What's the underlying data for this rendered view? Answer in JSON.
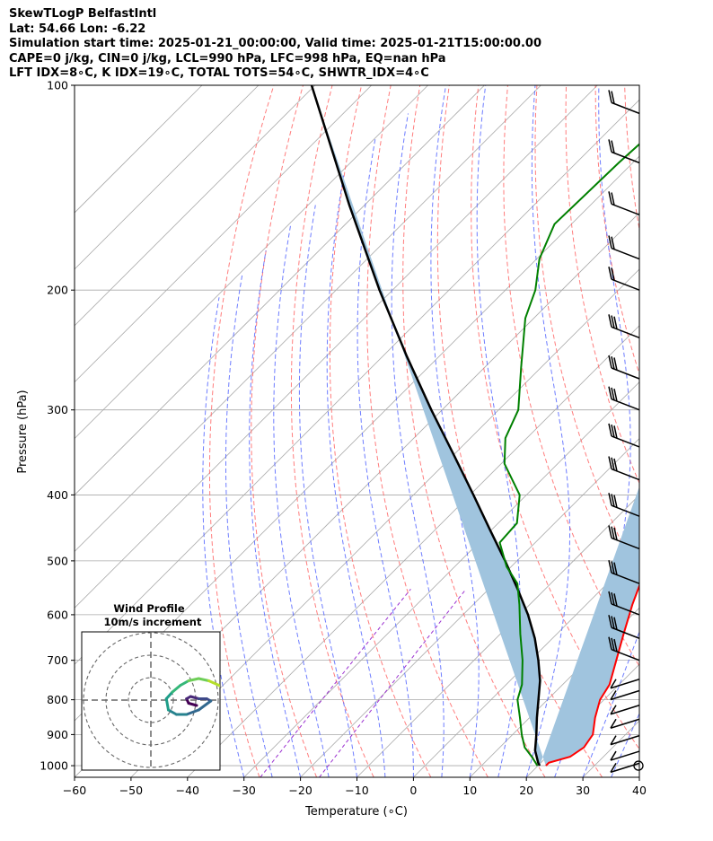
{
  "title_lines": [
    "SkewTLogP BelfastIntl",
    "Lat: 54.66   Lon: -6.22",
    "Simulation start time: 2025-01-21_00:00:00, Valid time: 2025-01-21T15:00:00.00",
    "CAPE=0 j/kg, CIN=0 j/kg, LCL=990 hPa, LFC=998 hPa, EQ=nan hPa",
    "LFT IDX=8∘C, K IDX=19∘C, TOTAL TOTS=54∘C, SHWTR_IDX=4∘C"
  ],
  "chart_data": {
    "type": "line",
    "subtype": "skew-t log-p",
    "xlabel": "Temperature (∘C)",
    "ylabel": "Pressure (hPa)",
    "xlim": [
      -60,
      40
    ],
    "ylim": [
      1040,
      100
    ],
    "x_ticks": [
      "−60",
      "−50",
      "−40",
      "−30",
      "−20",
      "−10",
      "0",
      "10",
      "20",
      "30",
      "40"
    ],
    "y_ticks": [
      "100",
      "200",
      "300",
      "400",
      "500",
      "600",
      "700",
      "800",
      "900",
      "1000"
    ],
    "y_tick_values": [
      100,
      200,
      300,
      400,
      500,
      600,
      700,
      800,
      900,
      1000
    ],
    "colors": {
      "temperature": "#ff0000",
      "dewpoint": "#008000",
      "parcel": "#000000",
      "fill": "#a0c4de",
      "dry_adiabat": "#ff6666",
      "moist_adiabat": "#5566ff",
      "mixing_ratio": "#9b30d0",
      "isotherm": "#a9a9a9"
    },
    "series": [
      {
        "name": "temperature",
        "pressure": [
          100,
          110,
          130,
          150,
          170,
          190,
          200,
          220,
          240,
          260,
          300,
          340,
          380,
          420,
          470,
          520,
          580,
          640,
          700,
          760,
          800,
          850,
          900,
          940,
          970,
          990,
          1000
        ],
        "values": [
          -57.2,
          -56.8,
          -51.5,
          -48.7,
          -44.6,
          -40,
          -37.7,
          -33.4,
          -28.8,
          -24.7,
          -18.7,
          -13.8,
          -9,
          -4.2,
          0.5,
          4.6,
          8.2,
          11.8,
          15.2,
          18.3,
          19.3,
          21.6,
          24.2,
          24.9,
          24.1,
          21.4,
          21.4
        ]
      },
      {
        "name": "dewpoint",
        "pressure": [
          100,
          130,
          160,
          180,
          200,
          220,
          260,
          300,
          330,
          360,
          400,
          440,
          470,
          510,
          540,
          580,
          640,
          700,
          760,
          800,
          850,
          900,
          940,
          970,
          1000
        ],
        "values": [
          -71,
          -72.5,
          -73,
          -69.5,
          -64.7,
          -61.5,
          -53.5,
          -46.5,
          -43.8,
          -39.4,
          -31.2,
          -26.7,
          -26.3,
          -20.8,
          -15.9,
          -11.8,
          -6.5,
          -1.4,
          2.8,
          4.7,
          8.3,
          11.6,
          14.4,
          17.3,
          19.9
        ]
      },
      {
        "name": "parcel",
        "pressure": [
          1000,
          990,
          950,
          900,
          850,
          800,
          750,
          700,
          650,
          600,
          550,
          500,
          450,
          400,
          350,
          300,
          250,
          200,
          150,
          100
        ],
        "values": [
          20.3,
          19.5,
          16.8,
          14.2,
          11.3,
          8.4,
          5.3,
          1.4,
          -3.1,
          -8.5,
          -14.9,
          -22.1,
          -30.3,
          -39.4,
          -49.8,
          -61.9,
          -75.8,
          -92.3,
          -112.7,
          -140.6
        ]
      }
    ],
    "wind_barbs": {
      "pressure": [
        110,
        130,
        155,
        180,
        200,
        235,
        270,
        300,
        340,
        380,
        430,
        480,
        540,
        600,
        650,
        700,
        760,
        790,
        830,
        870,
        920,
        970,
        1010
      ]
    },
    "inset": {
      "title": "Wind Profile",
      "subtitle": "10m/s increment",
      "rings": [
        10,
        20,
        30
      ],
      "hodograph_u": [
        -4,
        -8,
        -9,
        -7,
        -3,
        1,
        3,
        -3,
        -9,
        -14,
        -18,
        -19,
        -16,
        -12,
        -8,
        -3,
        2,
        7,
        11,
        14
      ],
      "hodograph_v": [
        0,
        1,
        3,
        4,
        3,
        3,
        2,
        -2,
        -4,
        -4,
        -2,
        3,
        6,
        9,
        11,
        12,
        11,
        9,
        7,
        6
      ]
    }
  }
}
